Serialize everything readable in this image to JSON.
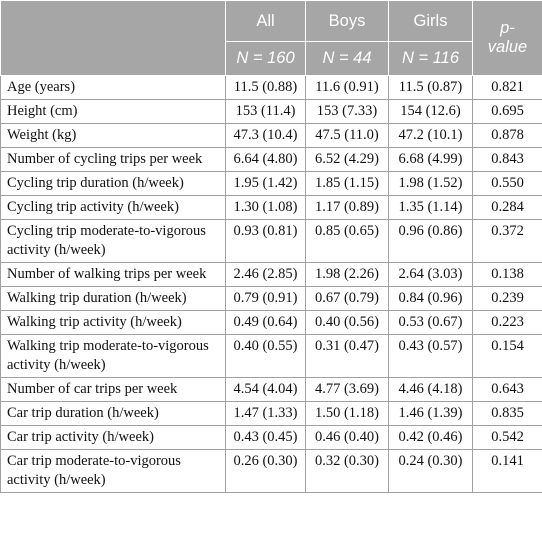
{
  "table": {
    "header": {
      "columns": [
        "All",
        "Boys",
        "Girls",
        "p-value"
      ],
      "counts": [
        "N = 160",
        "N = 44",
        "N = 116"
      ]
    },
    "rows": [
      [
        "Age (years)",
        "11.5 (0.88)",
        "11.6 (0.91)",
        "11.5 (0.87)",
        "0.821"
      ],
      [
        "Height (cm)",
        "153 (11.4)",
        "153 (7.33)",
        "154 (12.6)",
        "0.695"
      ],
      [
        "Weight (kg)",
        "47.3 (10.4)",
        "47.5 (11.0)",
        "47.2 (10.1)",
        "0.878"
      ],
      [
        "Number of cycling trips per week",
        "6.64 (4.80)",
        "6.52 (4.29)",
        "6.68 (4.99)",
        "0.843"
      ],
      [
        "Cycling trip duration (h/week)",
        "1.95 (1.42)",
        "1.85 (1.15)",
        "1.98 (1.52)",
        "0.550"
      ],
      [
        "Cycling trip activity (h/week)",
        "1.30 (1.08)",
        "1.17 (0.89)",
        "1.35 (1.14)",
        "0.284"
      ],
      [
        "Cycling trip moderate-to-vigorous activity (h/week)",
        "0.93 (0.81)",
        "0.85 (0.65)",
        "0.96 (0.86)",
        "0.372"
      ],
      [
        "Number of walking trips per week",
        "2.46 (2.85)",
        "1.98 (2.26)",
        "2.64 (3.03)",
        "0.138"
      ],
      [
        "Walking trip duration (h/week)",
        "0.79 (0.91)",
        "0.67 (0.79)",
        "0.84 (0.96)",
        "0.239"
      ],
      [
        "Walking trip activity (h/week)",
        "0.49 (0.64)",
        "0.40 (0.56)",
        "0.53 (0.67)",
        "0.223"
      ],
      [
        "Walking trip moderate-to-vigorous activity (h/week)",
        "0.40 (0.55)",
        "0.31 (0.47)",
        "0.43 (0.57)",
        "0.154"
      ],
      [
        "Number of car trips per week",
        "4.54 (4.04)",
        "4.77 (3.69)",
        "4.46 (4.18)",
        "0.643"
      ],
      [
        "Car trip duration (h/week)",
        "1.47 (1.33)",
        "1.50 (1.18)",
        "1.46 (1.39)",
        "0.835"
      ],
      [
        "Car trip activity (h/week)",
        "0.43 (0.45)",
        "0.46 (0.40)",
        "0.42 (0.46)",
        "0.542"
      ],
      [
        "Car trip moderate-to-vigorous activity (h/week)",
        "0.26 (0.30)",
        "0.32 (0.30)",
        "0.24 (0.30)",
        "0.141"
      ]
    ]
  }
}
